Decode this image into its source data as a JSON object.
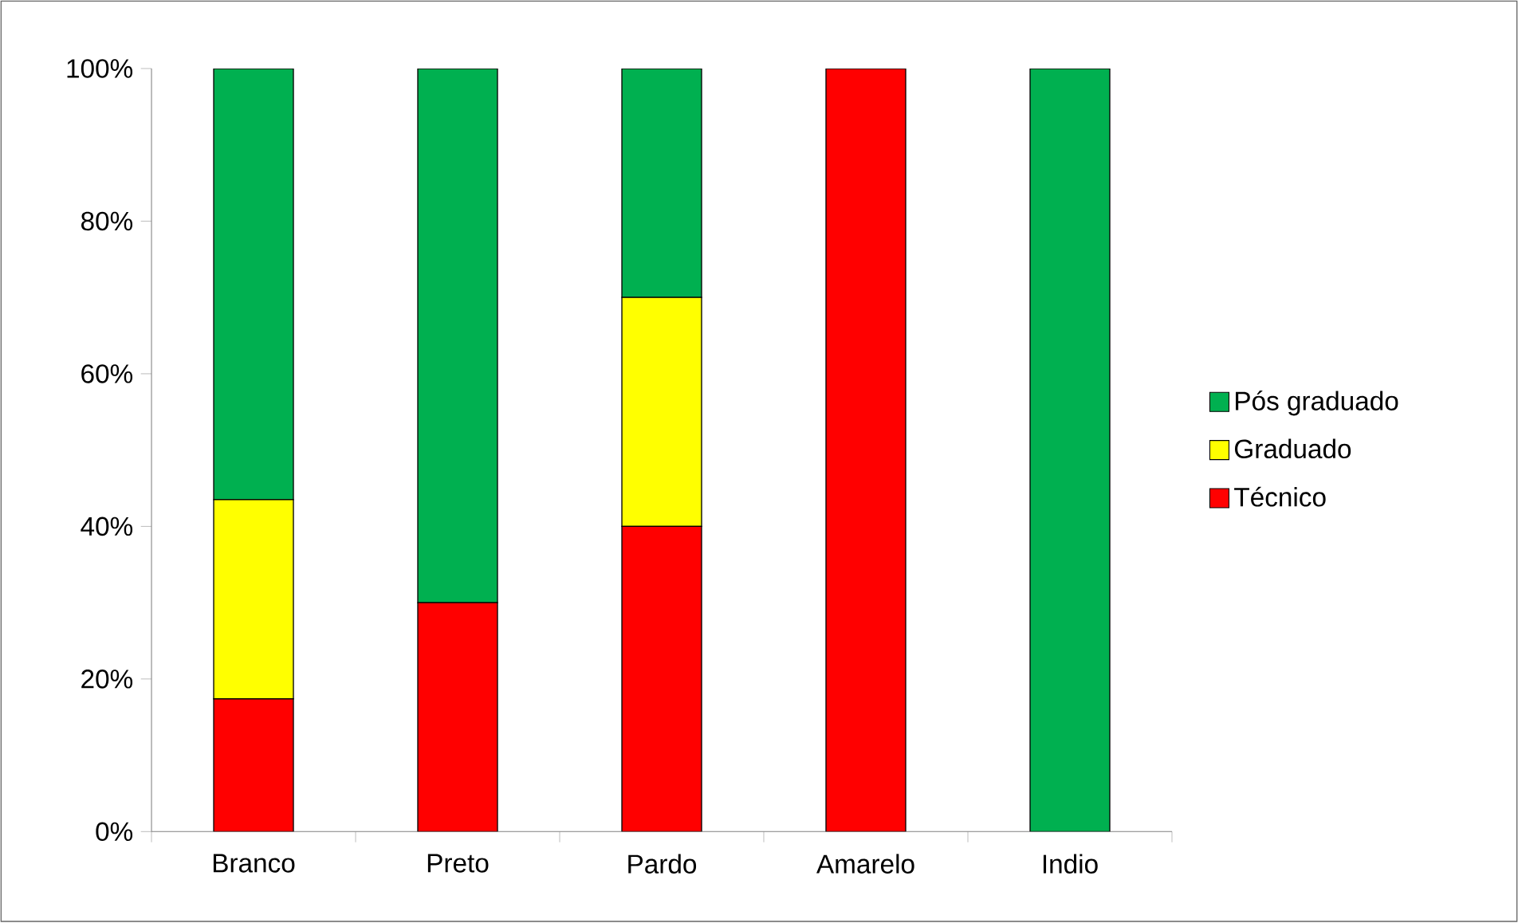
{
  "chart_data": {
    "type": "bar",
    "stacked": true,
    "categories": [
      "Branco",
      "Preto",
      "Pardo",
      "Amarelo",
      "Indio"
    ],
    "series": [
      {
        "name": "Técnico",
        "color": "#ff0000",
        "values": [
          17.4,
          30,
          40,
          100,
          0
        ]
      },
      {
        "name": "Graduado",
        "color": "#ffff00",
        "values": [
          26.1,
          0,
          30,
          0,
          0
        ]
      },
      {
        "name": "Pós graduado",
        "color": "#00b050",
        "values": [
          56.5,
          70,
          30,
          0,
          100
        ]
      }
    ],
    "ylim": [
      0,
      100
    ],
    "yticks": [
      {
        "value": 0,
        "label": "0%"
      },
      {
        "value": 20,
        "label": "20%"
      },
      {
        "value": 40,
        "label": "40%"
      },
      {
        "value": 60,
        "label": "60%"
      },
      {
        "value": 80,
        "label": "80%"
      },
      {
        "value": 100,
        "label": "100%"
      }
    ],
    "grid": false,
    "legend": "right"
  }
}
